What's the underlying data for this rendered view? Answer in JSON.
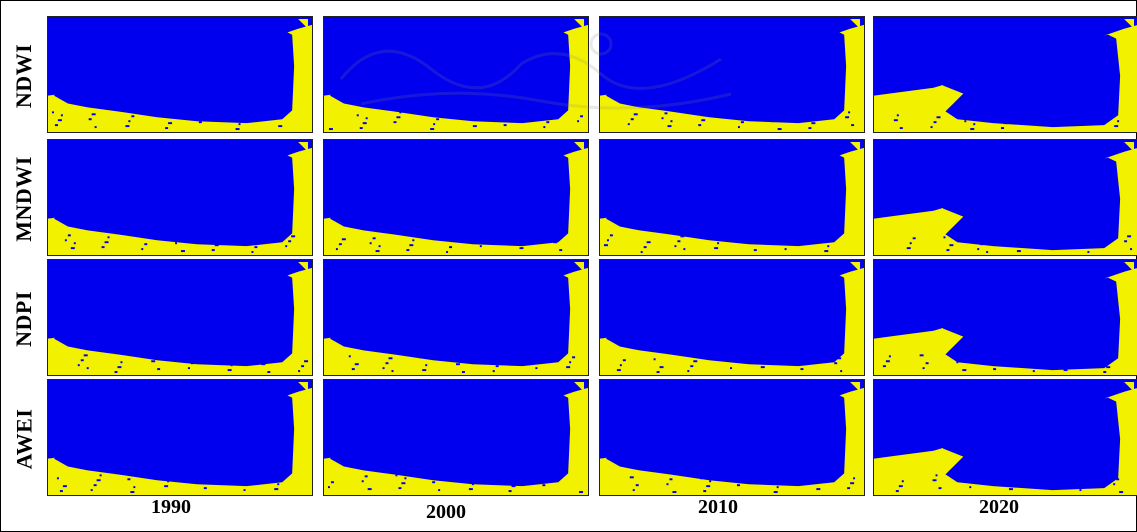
{
  "figure": {
    "rows": [
      "NDWI",
      "MNDWI",
      "NDPI",
      "AWEI"
    ],
    "columns": [
      "1990",
      "2000",
      "2010",
      "2020"
    ],
    "colors": {
      "water": "#0000ee",
      "land": "#f2f200",
      "frame": "#000000"
    },
    "watermark_text": "رتال جامع علوم انسانی"
  }
}
